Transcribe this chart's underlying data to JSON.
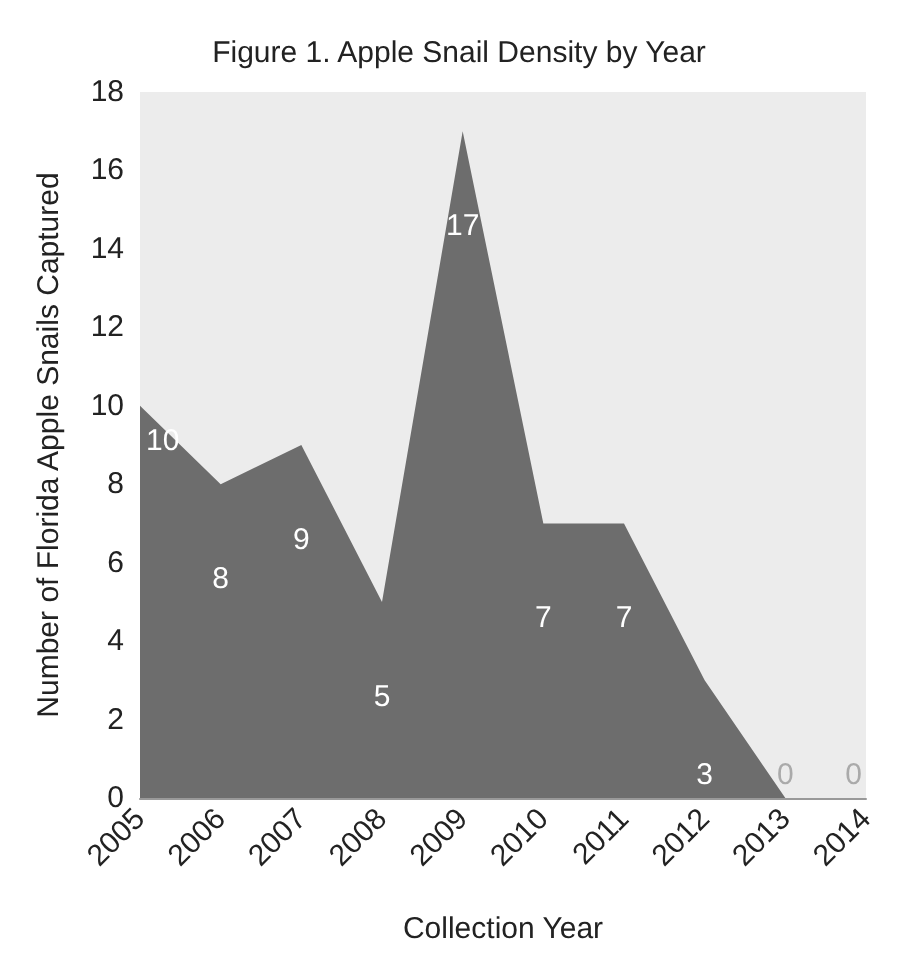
{
  "chart_data": {
    "type": "area",
    "title": "Figure 1. Apple Snail Density by Year",
    "xlabel": "Collection Year",
    "ylabel": "Number of Florida Apple Snails Captured",
    "categories": [
      "2005",
      "2006",
      "2007",
      "2008",
      "2009",
      "2010",
      "2011",
      "2012",
      "2013",
      "2014"
    ],
    "values": [
      10,
      8,
      9,
      5,
      17,
      7,
      7,
      3,
      0,
      0
    ],
    "color": "#6d6d6d",
    "ylim": [
      0,
      18
    ],
    "yticks": [
      0,
      2,
      4,
      6,
      8,
      10,
      12,
      14,
      16,
      18
    ],
    "grid": false,
    "data_labels": true
  }
}
